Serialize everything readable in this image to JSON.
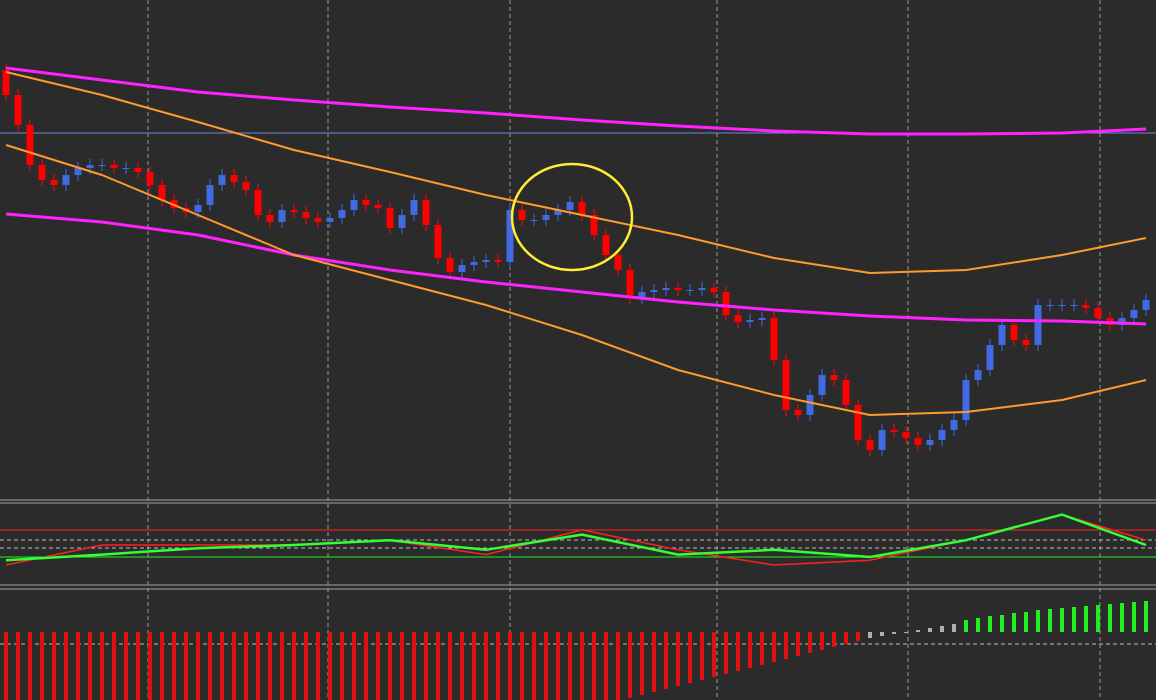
{
  "chart_data": [
    {
      "type": "candlestick",
      "ylim": [
        0,
        500
      ],
      "up_color": "#4169e1",
      "down_color": "#ff0000",
      "open": [
        430,
        405,
        375,
        335,
        320,
        315,
        325,
        332,
        335,
        335,
        332,
        332,
        328,
        315,
        300,
        292,
        288,
        295,
        315,
        325,
        318,
        310,
        285,
        278,
        290,
        288,
        282,
        278,
        282,
        290,
        300,
        295,
        292,
        272,
        285,
        300,
        275,
        242,
        228,
        235,
        238,
        240,
        238,
        290,
        280,
        280,
        285,
        290,
        298,
        285,
        265,
        245,
        230,
        202,
        208,
        210,
        212,
        210,
        210,
        212,
        208,
        185,
        178,
        180,
        182,
        140,
        90,
        85,
        105,
        125,
        120,
        95,
        60,
        50,
        70,
        68,
        62,
        55,
        60,
        70,
        80,
        120,
        130,
        155,
        175,
        160,
        155,
        195,
        195,
        195,
        195,
        192,
        182,
        175,
        182,
        190
      ],
      "high": [
        436,
        411,
        381,
        341,
        326,
        331,
        338,
        341,
        341,
        341,
        338,
        338,
        334,
        321,
        306,
        298,
        301,
        321,
        331,
        331,
        324,
        316,
        291,
        296,
        296,
        294,
        288,
        288,
        296,
        306,
        306,
        301,
        298,
        291,
        306,
        306,
        281,
        248,
        241,
        244,
        246,
        246,
        296,
        296,
        286,
        291,
        296,
        304,
        304,
        291,
        271,
        251,
        236,
        214,
        216,
        218,
        218,
        216,
        218,
        218,
        214,
        191,
        186,
        188,
        188,
        146,
        96,
        111,
        131,
        131,
        126,
        101,
        66,
        76,
        76,
        74,
        68,
        66,
        76,
        86,
        126,
        136,
        161,
        181,
        181,
        166,
        201,
        201,
        201,
        201,
        201,
        198,
        188,
        188,
        196,
        206
      ],
      "low": [
        399,
        369,
        329,
        314,
        309,
        309,
        319,
        326,
        329,
        326,
        326,
        322,
        309,
        294,
        286,
        282,
        282,
        289,
        309,
        312,
        304,
        279,
        272,
        272,
        282,
        276,
        272,
        272,
        276,
        284,
        289,
        286,
        266,
        266,
        279,
        269,
        236,
        222,
        222,
        229,
        232,
        232,
        232,
        274,
        274,
        274,
        279,
        284,
        279,
        259,
        239,
        224,
        196,
        196,
        202,
        204,
        204,
        204,
        204,
        202,
        179,
        172,
        172,
        174,
        134,
        84,
        79,
        79,
        99,
        114,
        89,
        54,
        44,
        44,
        62,
        56,
        49,
        49,
        54,
        64,
        74,
        114,
        124,
        149,
        154,
        149,
        149,
        189,
        189,
        189,
        186,
        176,
        169,
        169,
        176,
        184
      ],
      "close": [
        405,
        375,
        335,
        320,
        315,
        325,
        332,
        335,
        335,
        332,
        332,
        328,
        315,
        300,
        292,
        288,
        295,
        315,
        325,
        318,
        310,
        285,
        278,
        290,
        288,
        282,
        278,
        282,
        290,
        300,
        295,
        292,
        272,
        285,
        300,
        275,
        242,
        228,
        235,
        238,
        240,
        238,
        290,
        280,
        280,
        285,
        290,
        298,
        285,
        265,
        245,
        230,
        202,
        208,
        210,
        212,
        210,
        210,
        212,
        208,
        185,
        178,
        180,
        182,
        140,
        90,
        85,
        105,
        125,
        120,
        95,
        60,
        50,
        70,
        68,
        62,
        55,
        60,
        70,
        80,
        120,
        130,
        155,
        175,
        160,
        155,
        195,
        195,
        195,
        195,
        192,
        182,
        175,
        182,
        190,
        200
      ],
      "hline": {
        "value": 367,
        "color": "#6d8ad8"
      },
      "lines": [
        {
          "color": "#ff22ff",
          "width": 3,
          "x": [
            0,
            8,
            16,
            24,
            32,
            40,
            48,
            56,
            64,
            72,
            80,
            88,
            95
          ],
          "values": [
            432,
            420,
            408,
            400,
            393,
            387,
            380,
            374,
            369,
            366,
            366,
            367,
            371
          ]
        },
        {
          "color": "#ff22ff",
          "width": 3,
          "x": [
            0,
            8,
            16,
            24,
            32,
            40,
            48,
            56,
            64,
            72,
            80,
            88,
            95
          ],
          "values": [
            286,
            278,
            265,
            245,
            230,
            218,
            208,
            198,
            190,
            184,
            180,
            179,
            176
          ]
        },
        {
          "color": "#ff9a2e",
          "width": 2,
          "x": [
            0,
            8,
            16,
            24,
            32,
            40,
            48,
            56,
            64,
            72,
            80,
            88,
            95
          ],
          "values": [
            428,
            405,
            378,
            350,
            328,
            305,
            285,
            265,
            242,
            227,
            230,
            245,
            262
          ]
        },
        {
          "color": "#ff9a2e",
          "width": 2,
          "x": [
            0,
            8,
            16,
            24,
            32,
            40,
            48,
            56,
            64,
            72,
            80,
            88,
            95
          ],
          "values": [
            355,
            325,
            285,
            245,
            220,
            195,
            165,
            130,
            105,
            85,
            88,
            100,
            120
          ]
        }
      ]
    },
    {
      "type": "line",
      "ylim": [
        0,
        100
      ],
      "series": [
        {
          "color": "#ff2020",
          "width": 1.5,
          "x": [
            0,
            8,
            16,
            24,
            32,
            40,
            48,
            56,
            64,
            72,
            80,
            88,
            95
          ],
          "values": [
            25,
            50,
            50,
            50,
            56,
            38,
            69,
            44,
            25,
            31,
            56,
            88,
            56
          ]
        },
        {
          "color": "#33ff33",
          "width": 2.5,
          "x": [
            0,
            8,
            16,
            24,
            32,
            40,
            48,
            56,
            64,
            72,
            80,
            88,
            95
          ],
          "values": [
            31,
            38,
            46,
            50,
            56,
            44,
            63,
            38,
            44,
            35,
            56,
            88,
            50
          ]
        }
      ]
    },
    {
      "type": "histogram",
      "ylim": [
        -68,
        40
      ],
      "series": [
        {
          "color": "#e01010",
          "values": [
            -68,
            -68,
            -68,
            -68,
            -68,
            -68,
            -68,
            -68,
            -68,
            -68,
            -68,
            -68,
            -68,
            -68,
            -68,
            -68,
            -68,
            -68,
            -68,
            -68,
            -68,
            -68,
            -68,
            -68,
            -68,
            -68,
            -68,
            -68,
            -68,
            -68,
            -68,
            -68,
            -68,
            -68,
            -68,
            -68,
            -68,
            -68,
            -68,
            -68,
            -68,
            -68,
            -68,
            -68,
            -68,
            -68,
            -68,
            -68,
            -68,
            -68,
            -68,
            -68,
            -66,
            -63,
            -60,
            -57,
            -54,
            -51,
            -48,
            -45,
            -42,
            -39,
            -36,
            -33,
            -30,
            -27,
            -24,
            -21,
            -18,
            -15,
            -12,
            -9,
            null,
            null,
            null,
            null,
            null,
            null,
            null,
            null,
            null,
            null,
            null,
            null,
            null,
            null,
            null,
            null,
            null,
            null,
            null,
            null,
            null,
            null,
            null,
            null
          ]
        },
        {
          "color": "#b0b0b0",
          "values": [
            null,
            null,
            null,
            null,
            null,
            null,
            null,
            null,
            null,
            null,
            null,
            null,
            null,
            null,
            null,
            null,
            null,
            null,
            null,
            null,
            null,
            null,
            null,
            null,
            null,
            null,
            null,
            null,
            null,
            null,
            null,
            null,
            null,
            null,
            null,
            null,
            null,
            null,
            null,
            null,
            null,
            null,
            null,
            null,
            null,
            null,
            null,
            null,
            null,
            null,
            null,
            null,
            null,
            null,
            null,
            null,
            null,
            null,
            null,
            null,
            null,
            null,
            null,
            null,
            null,
            null,
            null,
            null,
            null,
            null,
            null,
            null,
            -6,
            -4,
            -2,
            0,
            2,
            4,
            6,
            8,
            null,
            null,
            null,
            null,
            null,
            null,
            null,
            null,
            null,
            null,
            null,
            null,
            null,
            null,
            null,
            null
          ]
        },
        {
          "color": "#22ee22",
          "values": [
            null,
            null,
            null,
            null,
            null,
            null,
            null,
            null,
            null,
            null,
            null,
            null,
            null,
            null,
            null,
            null,
            null,
            null,
            null,
            null,
            null,
            null,
            null,
            null,
            null,
            null,
            null,
            null,
            null,
            null,
            null,
            null,
            null,
            null,
            null,
            null,
            null,
            null,
            null,
            null,
            null,
            null,
            null,
            null,
            null,
            null,
            null,
            null,
            null,
            null,
            null,
            null,
            null,
            null,
            null,
            null,
            null,
            null,
            null,
            null,
            null,
            null,
            null,
            null,
            null,
            null,
            null,
            null,
            null,
            null,
            null,
            null,
            null,
            null,
            null,
            null,
            null,
            null,
            null,
            null,
            12,
            14,
            16,
            17,
            19,
            20,
            22,
            23,
            24,
            25,
            26,
            27,
            28,
            29,
            30,
            31
          ]
        }
      ]
    }
  ]
}
